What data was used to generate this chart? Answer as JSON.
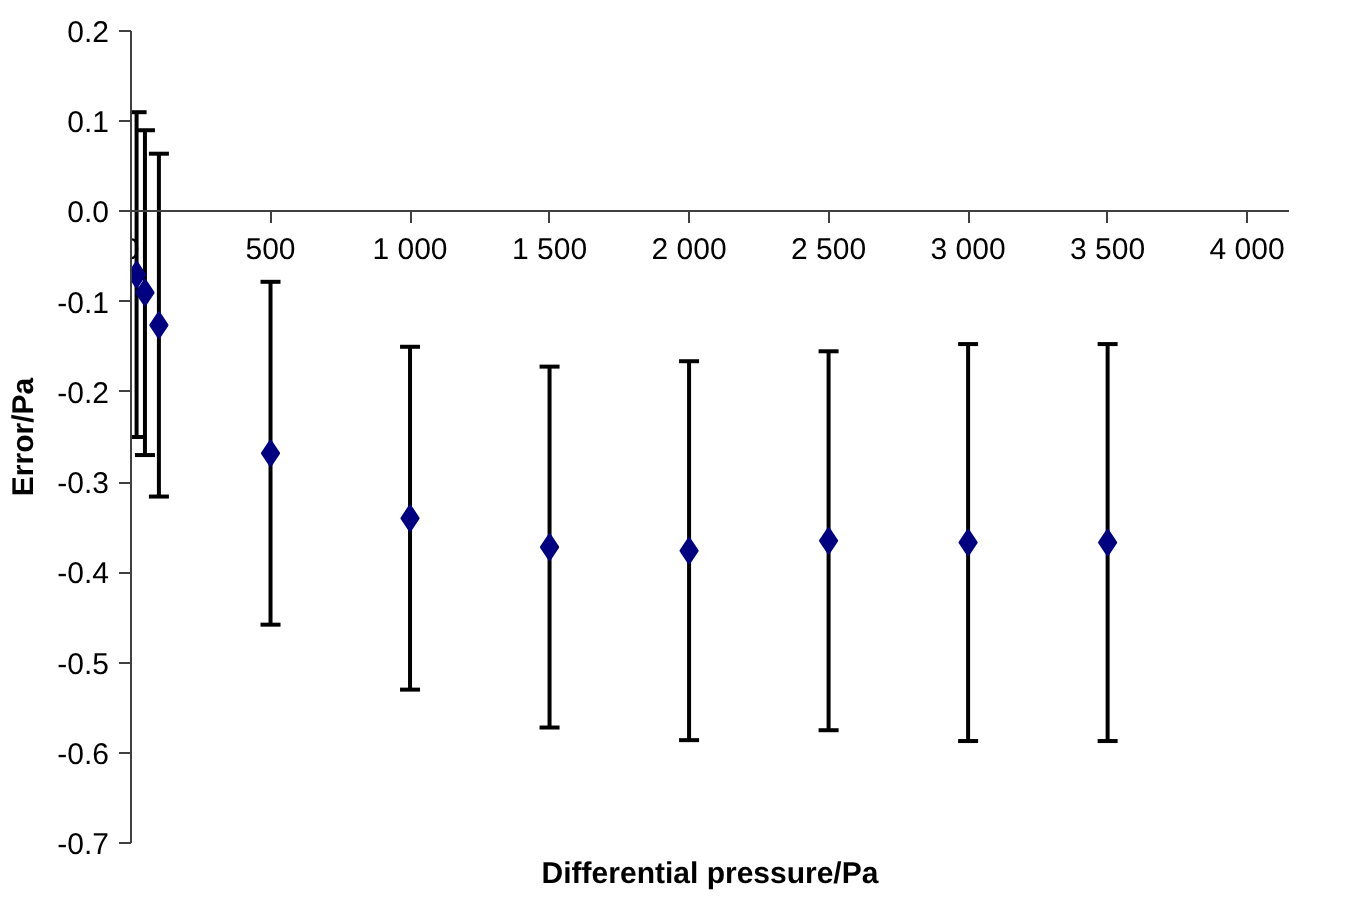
{
  "chart_data": {
    "type": "scatter",
    "xlabel": "Differential pressure/Pa",
    "ylabel": "Error/Pa",
    "x": [
      20,
      50,
      100,
      500,
      1000,
      1500,
      2000,
      2500,
      3000,
      3500
    ],
    "values": [
      -0.07,
      -0.09,
      -0.126,
      -0.268,
      -0.34,
      -0.372,
      -0.376,
      -0.365,
      -0.367,
      -0.367
    ],
    "errors": [
      0.18,
      0.18,
      0.19,
      0.19,
      0.19,
      0.2,
      0.21,
      0.21,
      0.22,
      0.22
    ],
    "color": "#000080",
    "marker": "diamond",
    "grid": false,
    "xlim": [
      0,
      4150
    ],
    "ylim": [
      -0.7,
      0.2
    ],
    "xticks": [
      0,
      500,
      {
        "value": 1000,
        "label": "1 000"
      },
      {
        "value": 1500,
        "label": "1 500"
      },
      {
        "value": 2000,
        "label": "2 000"
      },
      {
        "value": 2500,
        "label": "2 500"
      },
      {
        "value": 3000,
        "label": "3 000"
      },
      {
        "value": 3500,
        "label": "3 500"
      },
      {
        "value": 4000,
        "label": "4 000"
      }
    ],
    "yticks": [
      0.2,
      0.1,
      {
        "value": 0,
        "label": "0.0"
      },
      -0.1,
      -0.2,
      -0.3,
      -0.4,
      -0.5,
      -0.6,
      -0.7
    ]
  }
}
